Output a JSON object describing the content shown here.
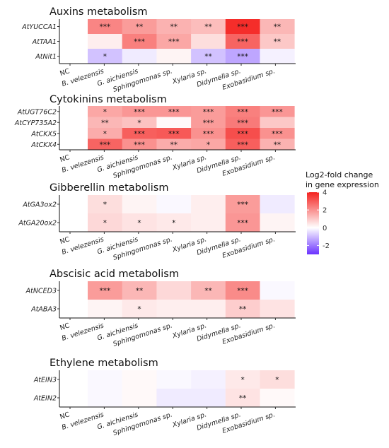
{
  "chart_data": [
    {
      "type": "heatmap",
      "title": "Auxins metabolism",
      "x_categories": [
        "NC",
        "B. velezensis",
        "G. aichiensis",
        "Sphingomonas sp.",
        "Xylaria sp.",
        "Didymella sp.",
        "Exobasidium sp."
      ],
      "y_categories": [
        "AtYUCCA1",
        "AtTAA1",
        "AtNit1"
      ],
      "values": [
        [
          0,
          2.2,
          1.8,
          1.4,
          1.2,
          3.8,
          1.3
        ],
        [
          0,
          0.3,
          2.3,
          1.6,
          0.6,
          2.8,
          1.0
        ],
        [
          0,
          -0.9,
          -0.3,
          0.2,
          -0.9,
          -1.3,
          -0.2
        ]
      ],
      "significance": [
        [
          "",
          "***",
          "**",
          "**",
          "**",
          "***",
          "**"
        ],
        [
          "",
          "",
          "***",
          "***",
          "",
          "***",
          "**"
        ],
        [
          "",
          "*",
          "",
          "",
          "**",
          "***",
          ""
        ]
      ]
    },
    {
      "type": "heatmap",
      "title": "Cytokinins metabolism",
      "x_categories": [
        "NC",
        "B. velezensis",
        "G. aichiensis",
        "Sphingomonas sp.",
        "Xylaria sp.",
        "Didymella sp.",
        "Exobasidium sp."
      ],
      "y_categories": [
        "AtUGT76C2",
        "AtCYP735A2",
        "AtCKX5",
        "AtCKX4"
      ],
      "values": [
        [
          0,
          1.6,
          1.9,
          1.9,
          1.8,
          2.3,
          1.9
        ],
        [
          0,
          1.3,
          1.1,
          0.1,
          1.8,
          2.4,
          1.0
        ],
        [
          0,
          1.5,
          2.9,
          3.0,
          2.0,
          3.2,
          2.0
        ],
        [
          0,
          2.8,
          2.0,
          1.5,
          1.6,
          2.9,
          1.4
        ]
      ],
      "significance": [
        [
          "",
          "*",
          "***",
          "***",
          "***",
          "***",
          "***"
        ],
        [
          "",
          "**",
          "*",
          "",
          "***",
          "***",
          ""
        ],
        [
          "",
          "*",
          "***",
          "***",
          "***",
          "***",
          "***"
        ],
        [
          "",
          "***",
          "***",
          "**",
          "*",
          "***",
          "**"
        ]
      ]
    },
    {
      "type": "heatmap",
      "title": "Gibberellin metabolism",
      "x_categories": [
        "NC",
        "B. velezensis",
        "G. aichiensis",
        "Sphingomonas sp.",
        "Xylaria sp.",
        "Didymella sp.",
        "Exobasidium sp."
      ],
      "y_categories": [
        "AtGA3ox2",
        "AtGA20ox2"
      ],
      "values": [
        [
          0,
          0.6,
          0.2,
          -0.1,
          0.3,
          1.8,
          -0.3
        ],
        [
          0,
          0.7,
          0.5,
          0.4,
          0.3,
          1.9,
          0.2
        ]
      ],
      "significance": [
        [
          "",
          "*",
          "",
          "",
          "",
          "***",
          ""
        ],
        [
          "",
          "*",
          "*",
          "*",
          "",
          "***",
          ""
        ]
      ]
    },
    {
      "type": "heatmap",
      "title": "Abscisic acid metabolism",
      "x_categories": [
        "NC",
        "B. velezensis",
        "G. aichiensis",
        "Sphingomonas sp.",
        "Xylaria sp.",
        "Didymella sp.",
        "Exobasidium sp."
      ],
      "y_categories": [
        "AtNCED3",
        "AtABA3"
      ],
      "values": [
        [
          0,
          1.8,
          1.3,
          0.7,
          1.3,
          2.1,
          -0.1
        ],
        [
          0,
          0.2,
          0.4,
          0.3,
          0.3,
          0.9,
          0.5
        ]
      ],
      "significance": [
        [
          "",
          "***",
          "**",
          "",
          "**",
          "***",
          ""
        ],
        [
          "",
          "",
          "*",
          "",
          "",
          "**",
          ""
        ]
      ]
    },
    {
      "type": "heatmap",
      "title": "Ethylene metabolism",
      "x_categories": [
        "NC",
        "B. velezensis",
        "G. aichiensis",
        "Sphingomonas sp.",
        "Xylaria sp.",
        "Didymella sp.",
        "Exobasidium sp."
      ],
      "y_categories": [
        "AtEIN3",
        "AtEIN2"
      ],
      "values": [
        [
          0,
          -0.1,
          0.1,
          -0.1,
          -0.2,
          0.4,
          0.6
        ],
        [
          0,
          -0.1,
          0.1,
          -0.3,
          -0.3,
          0.5,
          0.1
        ]
      ],
      "significance": [
        [
          "",
          "",
          "",
          "",
          "",
          "*",
          "*"
        ],
        [
          "",
          "",
          "",
          "",
          "",
          "**",
          ""
        ]
      ]
    }
  ],
  "legend": {
    "title_line1": "Log2-fold change",
    "title_line2": "in gene expression",
    "range": [
      -3,
      4
    ],
    "ticks": [
      4,
      2,
      0,
      -2
    ],
    "tick_labels": [
      "4",
      "2",
      "0",
      "-2"
    ],
    "low_color": "#6a32ff",
    "mid_color": "#ffffff",
    "high_color": "#f4221f"
  }
}
